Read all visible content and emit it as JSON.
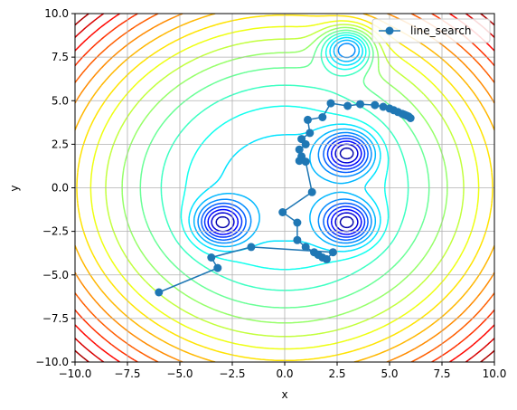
{
  "chart_data": {
    "type": "line",
    "title": "",
    "xlabel": "x",
    "ylabel": "y",
    "xlim": [
      -10,
      10
    ],
    "ylim": [
      -10,
      10
    ],
    "xticks": [
      -10,
      -7.5,
      -5,
      -2.5,
      0,
      2.5,
      5,
      7.5,
      10
    ],
    "yticks": [
      -10,
      -7.5,
      -5,
      -2.5,
      0,
      2.5,
      5,
      7.5,
      10
    ],
    "xtick_labels": [
      "−10.0",
      "−7.5",
      "−5.0",
      "−2.5",
      "0.0",
      "2.5",
      "5.0",
      "7.5",
      "10.0"
    ],
    "ytick_labels": [
      "−10.0",
      "−7.5",
      "−5.0",
      "−2.5",
      "0.0",
      "2.5",
      "5.0",
      "7.5",
      "10.0"
    ],
    "grid": true,
    "legend_position": "top-right",
    "background": {
      "kind": "contour",
      "colormap": "jet",
      "minima": [
        {
          "x": 3,
          "y": 8
        },
        {
          "x": 3,
          "y": 2
        },
        {
          "x": 3,
          "y": -2
        },
        {
          "x": -3,
          "y": -2
        }
      ]
    },
    "series": [
      {
        "name": "line_search",
        "color": "#1f77b4",
        "marker": "circle",
        "points": [
          [
            6.0,
            4.0
          ],
          [
            5.9,
            4.1
          ],
          [
            5.8,
            4.15
          ],
          [
            5.7,
            4.2
          ],
          [
            5.6,
            4.25
          ],
          [
            5.4,
            4.35
          ],
          [
            5.2,
            4.45
          ],
          [
            5.0,
            4.55
          ],
          [
            4.7,
            4.65
          ],
          [
            4.3,
            4.75
          ],
          [
            3.6,
            4.8
          ],
          [
            3.0,
            4.7
          ],
          [
            2.2,
            4.85
          ],
          [
            1.8,
            4.05
          ],
          [
            1.1,
            3.9
          ],
          [
            1.2,
            3.15
          ],
          [
            0.8,
            2.8
          ],
          [
            1.0,
            2.5
          ],
          [
            0.7,
            2.2
          ],
          [
            0.8,
            1.8
          ],
          [
            0.7,
            1.55
          ],
          [
            1.0,
            1.5
          ],
          [
            1.3,
            -0.25
          ],
          [
            -0.1,
            -1.4
          ],
          [
            0.6,
            -2.0
          ],
          [
            0.6,
            -3.0
          ],
          [
            1.0,
            -3.4
          ],
          [
            1.4,
            -3.7
          ],
          [
            1.6,
            -3.85
          ],
          [
            1.8,
            -4.0
          ],
          [
            2.0,
            -4.1
          ],
          [
            2.3,
            -3.7
          ],
          [
            -1.6,
            -3.4
          ],
          [
            -3.5,
            -4.0
          ],
          [
            -3.2,
            -4.6
          ],
          [
            -6.0,
            -6.0
          ]
        ]
      }
    ]
  }
}
